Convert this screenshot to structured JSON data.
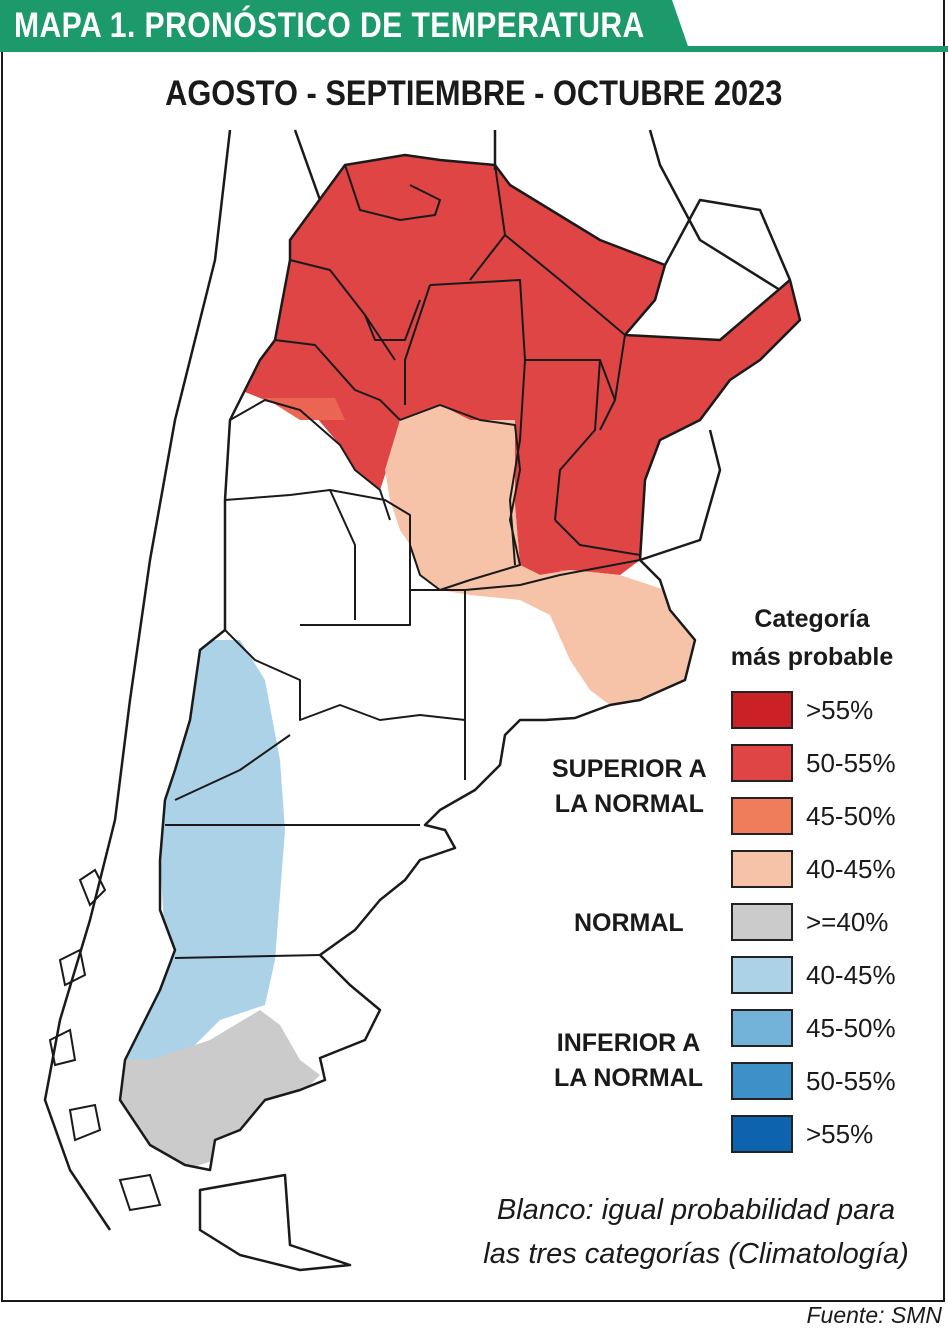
{
  "header": {
    "title": "MAPA 1.  PRONÓSTICO DE TEMPERATURA",
    "subtitle": "AGOSTO - SEPTIEMBRE - OCTUBRE 2023"
  },
  "legend": {
    "title_line1": "Categoría",
    "title_line2": "más probable",
    "superior_line1": "SUPERIOR A",
    "superior_line2": "LA NORMAL",
    "normal": "NORMAL",
    "inferior_line1": "INFERIOR A",
    "inferior_line2": "LA NORMAL",
    "items": [
      {
        "label": ">55%",
        "color": "#cc2027"
      },
      {
        "label": "50-55%",
        "color": "#df4545"
      },
      {
        "label": "45-50%",
        "color": "#ef7d5b"
      },
      {
        "label": "40-45%",
        "color": "#f6c2a8"
      },
      {
        "label": ">=40%",
        "color": "#cbcbcb"
      },
      {
        "label": "40-45%",
        "color": "#acd2e8"
      },
      {
        "label": "45-50%",
        "color": "#74b3d9"
      },
      {
        "label": "50-55%",
        "color": "#3e90c8"
      },
      {
        "label": ">55%",
        "color": "#0d63ad"
      }
    ]
  },
  "note": {
    "line1": "Blanco: igual probabilidad para",
    "line2": "las tres categorías (Climatología)"
  },
  "source": "Fuente: SMN",
  "colors": {
    "header_green": "#1d9a6c",
    "superior_50_55": "#df4545",
    "superior_45_50": "#ef7d5b",
    "superior_40_45": "#f6c2a8",
    "normal": "#cbcbcb",
    "inferior_40_45": "#acd2e8"
  }
}
